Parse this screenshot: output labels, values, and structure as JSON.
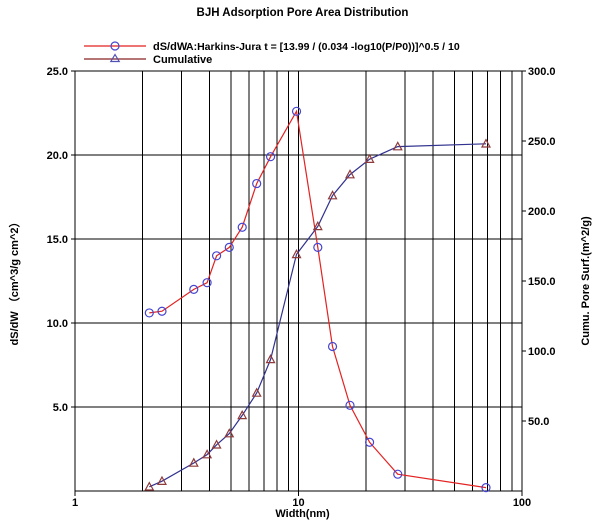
{
  "chart_data": {
    "type": "line",
    "title": "BJH Adsorption Pore Area Distribution",
    "annotation": "A:Harkins-Jura  t = [13.99 / (0.034 -log10(P/P0))]^0.5 / 10",
    "xlabel": "Width(nm)",
    "ylabel_left": "dS/dW （cm^3/g cm^2）",
    "ylabel_right": "Cumu. Pore Surf.(m^2/g)",
    "x_scale": "log",
    "xlim": [
      1,
      100
    ],
    "ylim_left": [
      0,
      25
    ],
    "ylim_right": [
      0,
      300
    ],
    "x_ticks": [
      1,
      10,
      100
    ],
    "y_left_ticks": [
      5,
      10,
      15,
      20,
      25
    ],
    "y_right_ticks": [
      50,
      100,
      150,
      200,
      250,
      300
    ],
    "x_gridlines": [
      2,
      3,
      4,
      5,
      6,
      7,
      8,
      9,
      10,
      20,
      30,
      40,
      50,
      60,
      70,
      80,
      90
    ],
    "y_gridlines_left_units": [
      5,
      10,
      15,
      20
    ],
    "grid": true,
    "legend_position": "top-left",
    "x": [
      2.15,
      2.45,
      3.4,
      3.9,
      4.3,
      4.9,
      5.6,
      6.5,
      7.5,
      9.8,
      12.2,
      14.2,
      17,
      20.8,
      27.8,
      69
    ],
    "series": [
      {
        "name": "dS/dW",
        "axis": "left",
        "marker": "circle",
        "line_color": "#e32222",
        "marker_color": "#4545d0",
        "values": [
          10.6,
          10.7,
          12.0,
          12.4,
          14.0,
          14.5,
          15.7,
          18.3,
          19.9,
          22.6,
          14.5,
          8.6,
          5.1,
          2.9,
          1.0,
          0.2
        ]
      },
      {
        "name": "Cumulative",
        "axis": "right",
        "marker": "triangle-up",
        "line_color": "#32328f",
        "marker_color": "#8f3a3a",
        "values": [
          3,
          7,
          20,
          26,
          33,
          41,
          54,
          70,
          94,
          169,
          189,
          211,
          226,
          237,
          246,
          248
        ]
      }
    ]
  },
  "legend": {
    "entries": [
      {
        "label": "dS/dW",
        "line_color": "#e32222",
        "marker": "circle",
        "marker_color": "#4545d0"
      },
      {
        "label": "Cumulative",
        "line_color": "#8b2323",
        "marker": "triangle-up",
        "marker_color": "#5050b5"
      }
    ]
  },
  "colors": {
    "grid": "#000000",
    "frame": "#000000",
    "background": "#ffffff",
    "text": "#000000"
  }
}
